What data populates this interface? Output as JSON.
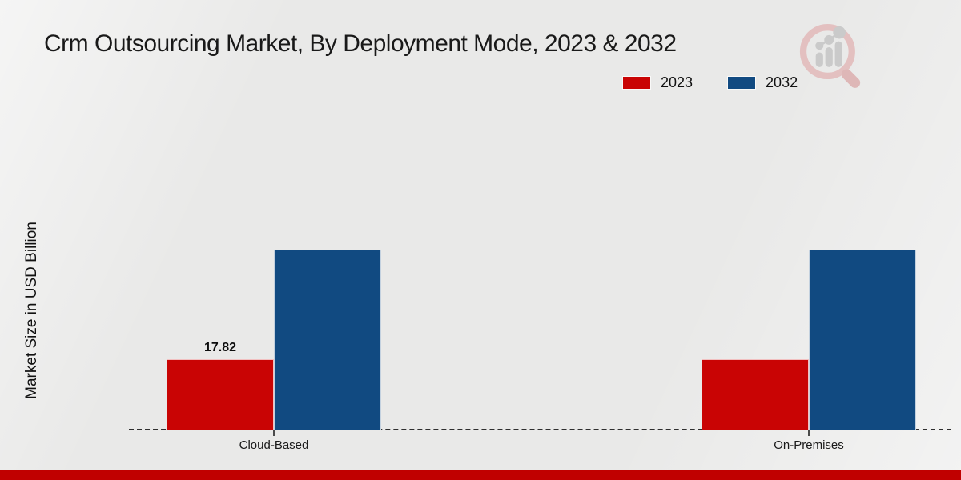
{
  "page": {
    "title": "Crm Outsourcing Market, By Deployment Mode, 2023 & 2032"
  },
  "branding": {
    "logo_icon": "magnifier-bar-chart",
    "logo_ring_color": "#e3bcbc",
    "logo_bars_color": "#c7c7c7",
    "bottom_stripe_color": "#c00000"
  },
  "chart_data": {
    "type": "bar",
    "title": "Crm Outsourcing Market, By Deployment Mode, 2023 & 2032",
    "ylabel": "Market Size in USD Billion",
    "xlabel": "",
    "categories": [
      "Cloud-Based",
      "On-Premises"
    ],
    "series": [
      {
        "name": "2023",
        "color": "#c90404",
        "values": [
          17.82,
          17.82
        ],
        "data_labels": [
          "17.82",
          ""
        ]
      },
      {
        "name": "2032",
        "color": "#114a81",
        "values": [
          45.25,
          45.25
        ],
        "data_labels": [
          "",
          ""
        ]
      }
    ],
    "ylim": [
      0,
      50
    ],
    "grid": false,
    "legend_position": "top-right",
    "baseline_style": "dashed"
  }
}
